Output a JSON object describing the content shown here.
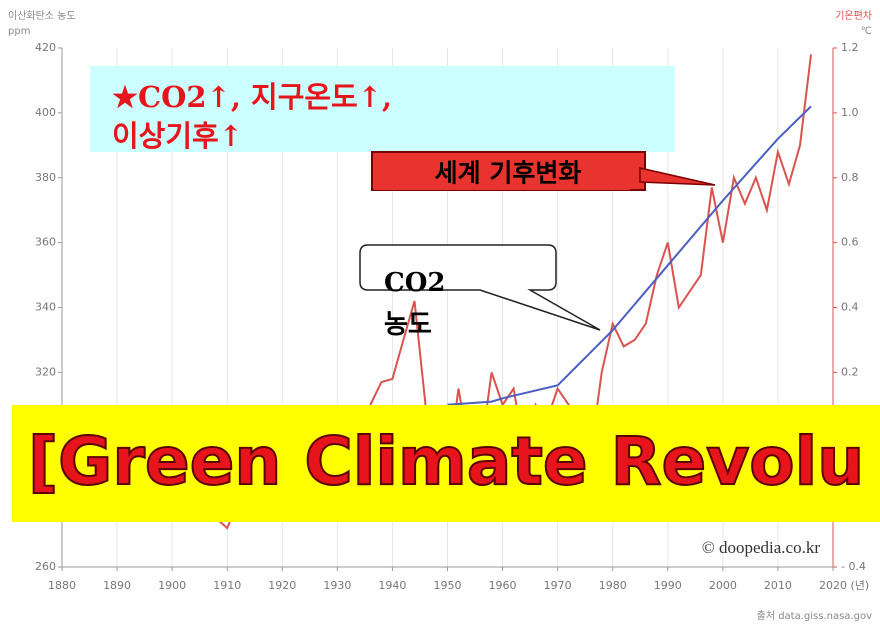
{
  "chart_data": {
    "type": "line",
    "y_label": "이산화탄소 농도",
    "y_unit": "ppm",
    "y2_label": "기온편차",
    "y2_unit": "℃",
    "source": "출처 data.giss.nasa.gov",
    "credit": "© doopedia.co.kr",
    "xlim": [
      1880,
      2020
    ],
    "xticks": [
      1880,
      1890,
      1900,
      1910,
      1920,
      1930,
      1940,
      1950,
      1960,
      1970,
      1980,
      1990,
      2000,
      2010,
      {
        "value": 2020,
        "label": "2020 (년)"
      }
    ],
    "ylim": [
      260,
      420
    ],
    "yticks": [
      260,
      320,
      340,
      360,
      380,
      400,
      420
    ],
    "y2lim": [
      -0.4,
      1.2
    ],
    "y2ticks": [
      {
        "value": -0.4,
        "label": "- 0.4"
      },
      0.2,
      0.4,
      0.6,
      0.8,
      {
        "value": 1,
        "label": "1.0"
      },
      1.2
    ],
    "grid": true,
    "series": [
      {
        "name": "기온편차",
        "color": "#d9534f",
        "axis": "y2",
        "x": [
          1880,
          1882,
          1884,
          1886,
          1888,
          1890,
          1892,
          1894,
          1896,
          1898,
          1900,
          1902,
          1904,
          1906,
          1908,
          1910,
          1912,
          1914,
          1916,
          1918,
          1920,
          1922,
          1924,
          1926,
          1928,
          1930,
          1932,
          1934,
          1936,
          1938,
          1940,
          1942,
          1944,
          1946,
          1948,
          1950,
          1952,
          1954,
          1956,
          1958,
          1960,
          1962,
          1964,
          1966,
          1968,
          1970,
          1972,
          1974,
          1976,
          1978,
          1980,
          1982,
          1984,
          1986,
          1988,
          1990,
          1992,
          1994,
          1996,
          1998,
          2000,
          2002,
          2004,
          2006,
          2008,
          2010,
          2012,
          2014,
          2016
        ],
        "values": [
          -0.05,
          -0.05,
          -0.15,
          -0.15,
          -0.05,
          -0.2,
          -0.15,
          -0.15,
          0.0,
          -0.05,
          0.0,
          -0.1,
          -0.2,
          -0.05,
          -0.25,
          -0.28,
          -0.2,
          -0.05,
          -0.15,
          -0.1,
          -0.1,
          -0.1,
          -0.1,
          0.05,
          -0.05,
          0.05,
          0.02,
          0.0,
          0.1,
          0.17,
          0.18,
          0.3,
          0.42,
          0.1,
          0.05,
          -0.1,
          0.15,
          -0.05,
          -0.05,
          0.2,
          0.1,
          0.15,
          -0.05,
          0.1,
          0.05,
          0.15,
          0.1,
          0.0,
          -0.05,
          0.2,
          0.35,
          0.28,
          0.3,
          0.35,
          0.5,
          0.6,
          0.4,
          0.45,
          0.5,
          0.77,
          0.6,
          0.8,
          0.72,
          0.8,
          0.7,
          0.88,
          0.78,
          0.9,
          1.18
        ]
      },
      {
        "name": "이산화탄소 농도",
        "color": "#4a5fc1",
        "x": [
          1950,
          1958,
          1960,
          1970,
          1980,
          1990,
          2000,
          2010,
          2016
        ],
        "values": [
          310,
          311,
          312,
          316,
          333,
          353,
          373,
          392,
          402
        ]
      }
    ],
    "headline": [
      "★CO2↑, 지구온도↑,",
      "이상기후↑"
    ],
    "callout_climate": "세계 기후변화",
    "callout_co2": [
      "CO2",
      "농도"
    ],
    "banner": "[Green Climate Revolu"
  }
}
